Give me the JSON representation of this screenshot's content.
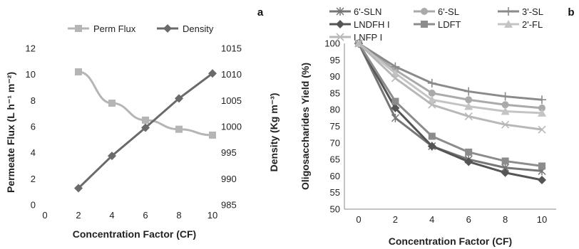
{
  "colors": {
    "perm_flux": "#b5b5b5",
    "density": "#6a6a6a",
    "sln": "#767676",
    "sl6": "#aaaaaa",
    "sl3": "#8a8a8a",
    "lndfh": "#555555",
    "ldft": "#8c8c8c",
    "fl2": "#c4c4c4",
    "lnfp": "#b8b8b8"
  },
  "chart_data": [
    {
      "type": "line",
      "panel_label": "a",
      "x": [
        2,
        4,
        6,
        8,
        10
      ],
      "xticks": [
        "0",
        "2",
        "4",
        "6",
        "8",
        "10"
      ],
      "xlim": [
        0,
        10
      ],
      "xlabel": "Concentration Factor (CF)",
      "ylabel": "Permeate Flux (L h⁻¹ m⁻²)",
      "ylim": [
        0,
        12
      ],
      "yticks": [
        "0",
        "2",
        "4",
        "6",
        "8",
        "10",
        "12"
      ],
      "y2label": "Density (Kg m⁻³)",
      "y2lim": [
        985,
        1015
      ],
      "y2ticks": [
        "985",
        "990",
        "995",
        "1000",
        "1005",
        "1010",
        "1015"
      ],
      "legend_position": "top",
      "series": [
        {
          "name": "Perm Flux",
          "axis": "left",
          "marker": "square",
          "color_key": "perm_flux",
          "values": [
            10.2,
            7.8,
            6.5,
            5.8,
            5.35
          ]
        },
        {
          "name": "Density",
          "axis": "right",
          "marker": "diamond",
          "color_key": "density",
          "values": [
            988.2,
            994.4,
            999.8,
            1005.4,
            1010.2
          ]
        }
      ]
    },
    {
      "type": "line",
      "panel_label": "b",
      "x": [
        0,
        2,
        4,
        6,
        8,
        10
      ],
      "xticks": [
        "0",
        "2",
        "4",
        "6",
        "8",
        "10"
      ],
      "xlim": [
        0,
        10
      ],
      "xlabel": "Concentration Factor (CF)",
      "ylabel": "Oligosaccharides Yield (%)",
      "ylim": [
        50,
        100
      ],
      "yticks": [
        "50",
        "55",
        "60",
        "65",
        "70",
        "75",
        "80",
        "85",
        "90",
        "95",
        "100"
      ],
      "legend_position": "top",
      "series": [
        {
          "name": "6'-SLN",
          "marker": "star",
          "color_key": "sln",
          "values": [
            100,
            77.5,
            69,
            65,
            62.5,
            61.5
          ]
        },
        {
          "name": "6'-SL",
          "marker": "circle",
          "color_key": "sl6",
          "values": [
            100,
            92,
            85,
            83,
            81.5,
            80.5
          ]
        },
        {
          "name": "3'-SL",
          "marker": "plus",
          "color_key": "sl3",
          "values": [
            100,
            93,
            88,
            85.5,
            84,
            83
          ]
        },
        {
          "name": "LNDFH I",
          "marker": "diamond",
          "color_key": "lndfh",
          "values": [
            100,
            80.5,
            69,
            64.3,
            61,
            58.8
          ]
        },
        {
          "name": "LDFT",
          "marker": "square",
          "color_key": "ldft",
          "values": [
            100,
            82.5,
            72,
            67.2,
            64.5,
            63
          ]
        },
        {
          "name": "2'-FL",
          "marker": "triangle",
          "color_key": "fl2",
          "values": [
            100,
            91,
            83,
            81,
            79.5,
            79
          ]
        },
        {
          "name": "LNFP I",
          "marker": "x",
          "color_key": "lnfp",
          "values": [
            100,
            89.5,
            81.5,
            78,
            75.5,
            74
          ]
        }
      ]
    }
  ]
}
